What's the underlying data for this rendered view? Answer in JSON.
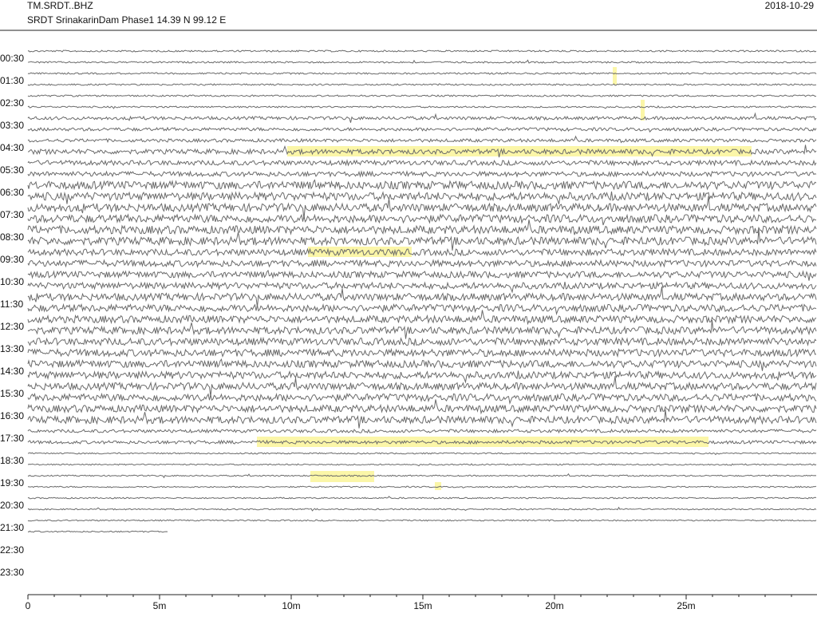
{
  "header": {
    "station": "TM.SRDT..BHZ",
    "description": "SRDT SrinakarinDam Phase1  14.39 N 99.12 E",
    "date": "2018-10-29"
  },
  "chart_data": {
    "type": "helicorder",
    "categories": [
      "00:30",
      "01:30",
      "02:30",
      "03:30",
      "04:30",
      "05:30",
      "06:30",
      "07:30",
      "08:30",
      "09:30",
      "10:30",
      "11:30",
      "12:30",
      "13:30",
      "14:30",
      "15:30",
      "16:30",
      "17:30",
      "18:30",
      "19:30",
      "20:30",
      "21:30",
      "22:30",
      "23:30"
    ],
    "xlim": [
      0,
      30
    ],
    "xticks": [
      0,
      {
        "value": 5,
        "label": "5m"
      },
      {
        "value": 10,
        "label": "10m"
      },
      {
        "value": 15,
        "label": "15m"
      },
      {
        "value": 20,
        "label": "20m"
      },
      {
        "value": 25,
        "label": "25m"
      }
    ]
  }
}
